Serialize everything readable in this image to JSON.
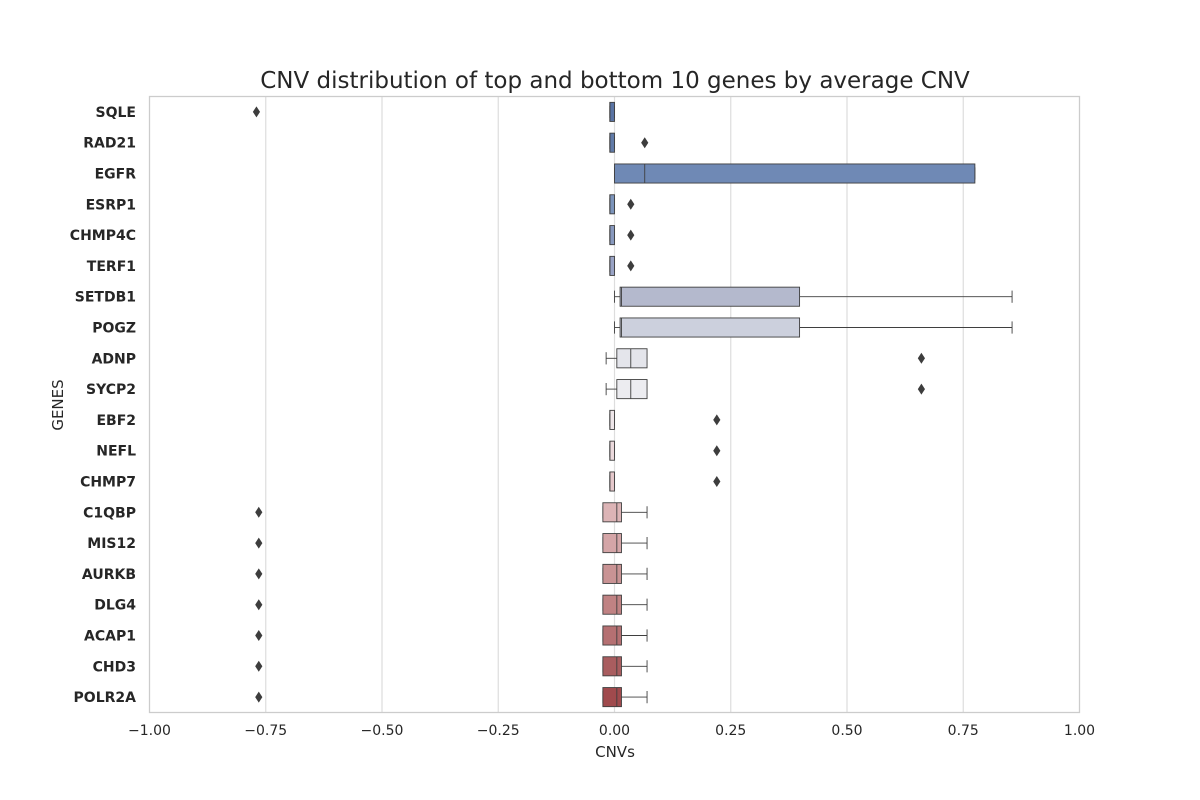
{
  "chart_data": {
    "type": "box",
    "orientation": "horizontal",
    "title": "CNV distribution of top and bottom 10 genes by average CNV",
    "xlabel": "CNVs",
    "ylabel": "GENES",
    "xlim": [
      -1.0,
      1.0
    ],
    "xticks": [
      -1.0,
      -0.75,
      -0.5,
      -0.25,
      0.0,
      0.25,
      0.5,
      0.75,
      1.0
    ],
    "xtick_labels": [
      "−1.00",
      "−0.75",
      "−0.50",
      "−0.25",
      "0.00",
      "0.25",
      "0.50",
      "0.75",
      "1.00"
    ],
    "grid": "vertical",
    "categories": [
      "SQLE",
      "RAD21",
      "EGFR",
      "ESRP1",
      "CHMP4C",
      "TERF1",
      "SETDB1",
      "POGZ",
      "ADNP",
      "SYCP2",
      "EBF2",
      "NEFL",
      "CHMP7",
      "C1QBP",
      "MIS12",
      "AURKB",
      "DLG4",
      "ACAP1",
      "CHD3",
      "POLR2A"
    ],
    "boxes": [
      {
        "gene": "SQLE",
        "whisker_low": -0.01,
        "q1": -0.01,
        "median": -0.01,
        "q3": 0.0,
        "whisker_high": 0.0,
        "outliers": [
          -0.77
        ]
      },
      {
        "gene": "RAD21",
        "whisker_low": -0.01,
        "q1": -0.01,
        "median": -0.01,
        "q3": 0.0,
        "whisker_high": 0.0,
        "outliers": [
          0.065
        ]
      },
      {
        "gene": "EGFR",
        "whisker_low": 0.0,
        "q1": 0.0,
        "median": 0.065,
        "q3": 0.775,
        "whisker_high": 0.775,
        "outliers": []
      },
      {
        "gene": "ESRP1",
        "whisker_low": -0.01,
        "q1": -0.01,
        "median": -0.01,
        "q3": 0.0,
        "whisker_high": 0.0,
        "outliers": [
          0.035
        ]
      },
      {
        "gene": "CHMP4C",
        "whisker_low": -0.01,
        "q1": -0.01,
        "median": -0.01,
        "q3": 0.0,
        "whisker_high": 0.0,
        "outliers": [
          0.035
        ]
      },
      {
        "gene": "TERF1",
        "whisker_low": -0.01,
        "q1": -0.01,
        "median": -0.01,
        "q3": 0.0,
        "whisker_high": 0.0,
        "outliers": [
          0.035
        ]
      },
      {
        "gene": "SETDB1",
        "whisker_low": 0.0,
        "q1": 0.012,
        "median": 0.015,
        "q3": 0.398,
        "whisker_high": 0.855,
        "outliers": []
      },
      {
        "gene": "POGZ",
        "whisker_low": 0.0,
        "q1": 0.012,
        "median": 0.015,
        "q3": 0.398,
        "whisker_high": 0.855,
        "outliers": []
      },
      {
        "gene": "ADNP",
        "whisker_low": -0.018,
        "q1": 0.005,
        "median": 0.035,
        "q3": 0.07,
        "whisker_high": 0.07,
        "outliers": [
          0.66
        ]
      },
      {
        "gene": "SYCP2",
        "whisker_low": -0.018,
        "q1": 0.005,
        "median": 0.035,
        "q3": 0.07,
        "whisker_high": 0.07,
        "outliers": [
          0.66
        ]
      },
      {
        "gene": "EBF2",
        "whisker_low": -0.01,
        "q1": -0.01,
        "median": -0.01,
        "q3": 0.0,
        "whisker_high": 0.0,
        "outliers": [
          0.22
        ]
      },
      {
        "gene": "NEFL",
        "whisker_low": -0.01,
        "q1": -0.01,
        "median": -0.01,
        "q3": 0.0,
        "whisker_high": 0.0,
        "outliers": [
          0.22
        ]
      },
      {
        "gene": "CHMP7",
        "whisker_low": -0.01,
        "q1": -0.01,
        "median": -0.01,
        "q3": 0.0,
        "whisker_high": 0.0,
        "outliers": [
          0.22
        ]
      },
      {
        "gene": "C1QBP",
        "whisker_low": -0.025,
        "q1": -0.025,
        "median": 0.005,
        "q3": 0.015,
        "whisker_high": 0.07,
        "outliers": [
          -0.765
        ]
      },
      {
        "gene": "MIS12",
        "whisker_low": -0.025,
        "q1": -0.025,
        "median": 0.005,
        "q3": 0.015,
        "whisker_high": 0.07,
        "outliers": [
          -0.765
        ]
      },
      {
        "gene": "AURKB",
        "whisker_low": -0.025,
        "q1": -0.025,
        "median": 0.005,
        "q3": 0.015,
        "whisker_high": 0.07,
        "outliers": [
          -0.765
        ]
      },
      {
        "gene": "DLG4",
        "whisker_low": -0.025,
        "q1": -0.025,
        "median": 0.005,
        "q3": 0.015,
        "whisker_high": 0.07,
        "outliers": [
          -0.765
        ]
      },
      {
        "gene": "ACAP1",
        "whisker_low": -0.025,
        "q1": -0.025,
        "median": 0.005,
        "q3": 0.015,
        "whisker_high": 0.07,
        "outliers": [
          -0.765
        ]
      },
      {
        "gene": "CHD3",
        "whisker_low": -0.025,
        "q1": -0.025,
        "median": 0.005,
        "q3": 0.015,
        "whisker_high": 0.07,
        "outliers": [
          -0.765
        ]
      },
      {
        "gene": "POLR2A",
        "whisker_low": -0.025,
        "q1": -0.025,
        "median": 0.005,
        "q3": 0.015,
        "whisker_high": 0.07,
        "outliers": [
          -0.765
        ]
      }
    ],
    "colors": [
      "#5a74a4",
      "#617ba8",
      "#6f89b5",
      "#7c94bb",
      "#8899be",
      "#99a3c5",
      "#b4b9cd",
      "#ccd0dd",
      "#e4e5eb",
      "#ececf0",
      "#eee6e9",
      "#ebd9dc",
      "#e5c8cb",
      "#dcb4b6",
      "#d4a5a7",
      "#c99394",
      "#c08283",
      "#b57072",
      "#a95d5f",
      "#a04a4d"
    ],
    "edge_color": "#3f3f3f"
  }
}
